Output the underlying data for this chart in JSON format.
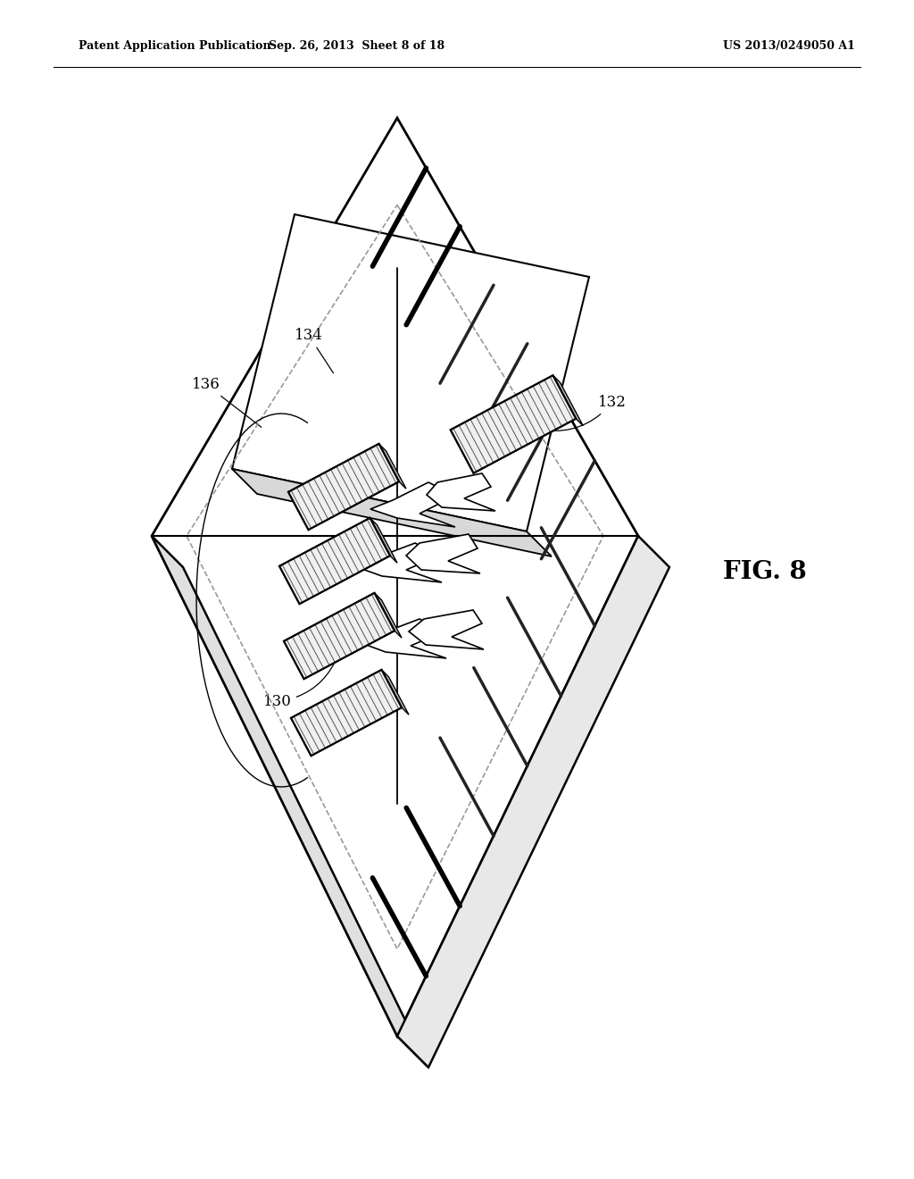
{
  "background_color": "#ffffff",
  "header_left": "Patent Application Publication",
  "header_center": "Sep. 26, 2013  Sheet 8 of 18",
  "header_right": "US 2013/0249050 A1",
  "fig_label": "FIG. 8",
  "line_color": "#000000",
  "dashed_color": "#888888",
  "gray_light": "#e8e8e8",
  "gray_med": "#cccccc"
}
